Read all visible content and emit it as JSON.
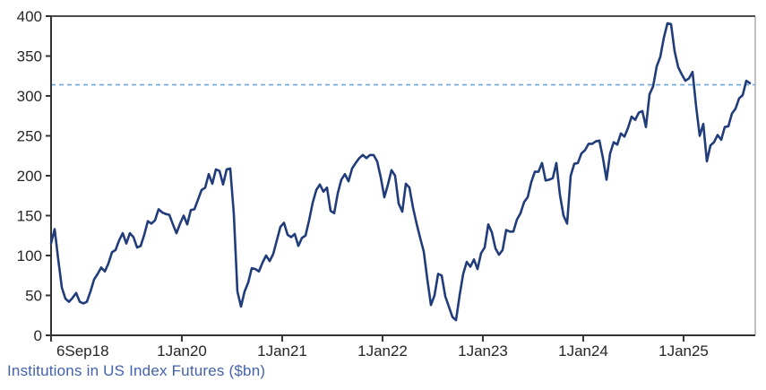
{
  "chart_data": {
    "type": "line",
    "title": "",
    "xlabel": "",
    "ylabel": "",
    "footer_label": "Institutions in US Index Futures ($bn)",
    "ylim": [
      0,
      400
    ],
    "y_ticks": [
      0,
      50,
      100,
      150,
      200,
      250,
      300,
      350,
      400
    ],
    "x_ticks": [
      {
        "t": 2018.696,
        "label": "6Sep18",
        "align": "start"
      },
      {
        "t": 2020.0,
        "label": "1Jan20",
        "align": "middle"
      },
      {
        "t": 2021.0,
        "label": "1Jan21",
        "align": "middle"
      },
      {
        "t": 2022.0,
        "label": "1Jan22",
        "align": "middle"
      },
      {
        "t": 2023.0,
        "label": "1Jan23",
        "align": "middle"
      },
      {
        "t": 2024.0,
        "label": "1Jan24",
        "align": "middle"
      },
      {
        "t": 2025.0,
        "label": "1Jan25",
        "align": "middle"
      }
    ],
    "grid": false,
    "legend": "none",
    "reference_line": {
      "value": 314,
      "style": "dashed"
    },
    "series": [
      {
        "name": "Institutions in US Index Futures ($bn)",
        "t_start": 2018.696429,
        "t_step": 0.0357143,
        "values": [
          115,
          133,
          95,
          60,
          46,
          42,
          47,
          53,
          42,
          40,
          42,
          55,
          70,
          77,
          85,
          80,
          90,
          104,
          107,
          119,
          128,
          115,
          128,
          123,
          110,
          112,
          126,
          143,
          140,
          144,
          158,
          154,
          152,
          151,
          139,
          128,
          140,
          150,
          139,
          157,
          158,
          170,
          182,
          185,
          202,
          190,
          208,
          206,
          189,
          208,
          209,
          152,
          55,
          36,
          55,
          66,
          84,
          83,
          80,
          91,
          100,
          93,
          102,
          119,
          136,
          141,
          126,
          123,
          127,
          112,
          122,
          125,
          144,
          166,
          182,
          189,
          180,
          185,
          156,
          153,
          178,
          195,
          202,
          193,
          209,
          216,
          222,
          226,
          222,
          226,
          226,
          218,
          198,
          173,
          189,
          207,
          200,
          165,
          155,
          190,
          185,
          160,
          140,
          122,
          105,
          70,
          38,
          50,
          77,
          75,
          49,
          36,
          23,
          19,
          50,
          77,
          92,
          86,
          95,
          83,
          103,
          110,
          139,
          129,
          109,
          101,
          107,
          132,
          130,
          130,
          145,
          153,
          167,
          173,
          192,
          205,
          205,
          216,
          194,
          195,
          197,
          216,
          176,
          150,
          140,
          200,
          215,
          216,
          228,
          232,
          240,
          240,
          243,
          244,
          222,
          195,
          228,
          242,
          239,
          253,
          249,
          260,
          274,
          270,
          279,
          281,
          261,
          302,
          312,
          337,
          349,
          373,
          391,
          390,
          356,
          336,
          327,
          319,
          322,
          330,
          287,
          250,
          265,
          218,
          238,
          242,
          251,
          245,
          261,
          262,
          278,
          284,
          297,
          301,
          319,
          316
        ]
      }
    ]
  },
  "colors": {
    "series_line": "#213C7B",
    "reference_line": "#6FA8DC",
    "axis": "#333333",
    "right_border": "#808080",
    "top_border": "#4d4d4d",
    "tick_label": "#262626",
    "footer_text": "#4361AC",
    "background": "#ffffff"
  }
}
